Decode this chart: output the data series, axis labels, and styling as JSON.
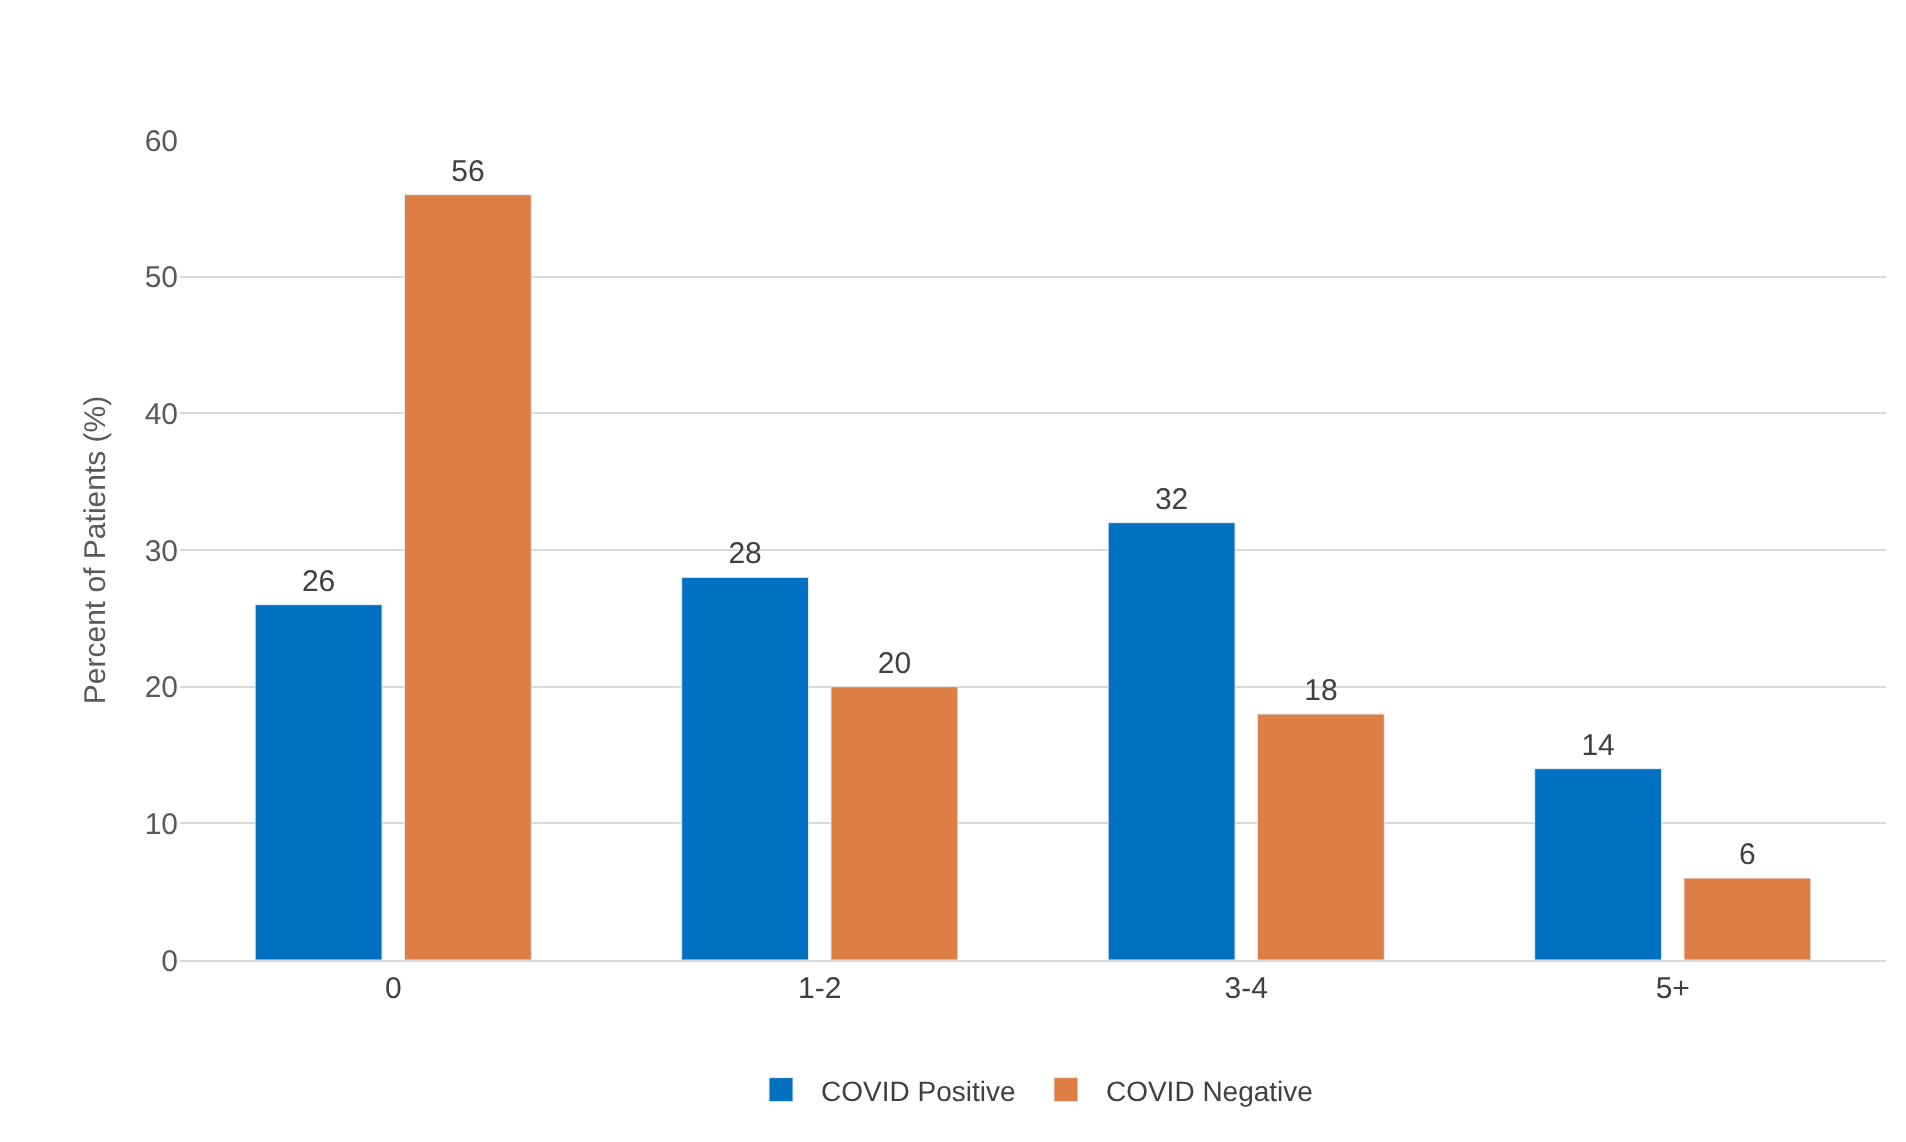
{
  "chart_data": {
    "type": "bar",
    "ylabel": "Percent of Patients (%)",
    "categories": [
      "0",
      "1-2",
      "3-4",
      "5+"
    ],
    "series": [
      {
        "name": "COVID Positive",
        "color": "#0070c0",
        "values": [
          26,
          28,
          32,
          14
        ]
      },
      {
        "name": "COVID Negative",
        "color": "#dd7f45",
        "values": [
          56,
          20,
          18,
          6
        ]
      }
    ],
    "ylim": [
      0,
      60
    ],
    "yticks": [
      0,
      10,
      20,
      30,
      40,
      50,
      60
    ],
    "grid": "y",
    "legend": "bottom",
    "data_labels": true
  }
}
